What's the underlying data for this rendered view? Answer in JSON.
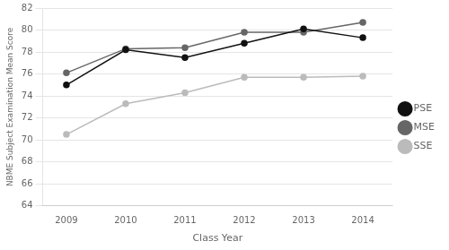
{
  "chart_data": {
    "type": "line",
    "x": [
      2009,
      2010,
      2011,
      2012,
      2013,
      2014
    ],
    "series": [
      {
        "name": "PSE",
        "color": "#111111",
        "values": [
          75.0,
          78.2,
          77.5,
          78.8,
          80.1,
          79.3
        ]
      },
      {
        "name": "MSE",
        "color": "#666666",
        "values": [
          76.1,
          78.3,
          78.4,
          79.8,
          79.8,
          80.7
        ]
      },
      {
        "name": "SSE",
        "color": "#bbbbbb",
        "values": [
          70.5,
          73.3,
          74.3,
          75.7,
          75.7,
          75.8
        ]
      }
    ],
    "xlabel": "Class Year",
    "ylabel": "NBME Subject Examination Mean Score",
    "xlim": [
      2008.6,
      2014.5
    ],
    "xticks": [
      2009,
      2010,
      2011,
      2012,
      2013,
      2014
    ],
    "ylim": [
      64,
      82
    ],
    "yticks": [
      64,
      66,
      68,
      70,
      72,
      74,
      76,
      78,
      80,
      82
    ],
    "grid": "y",
    "legend": "right",
    "marker": "circle"
  }
}
